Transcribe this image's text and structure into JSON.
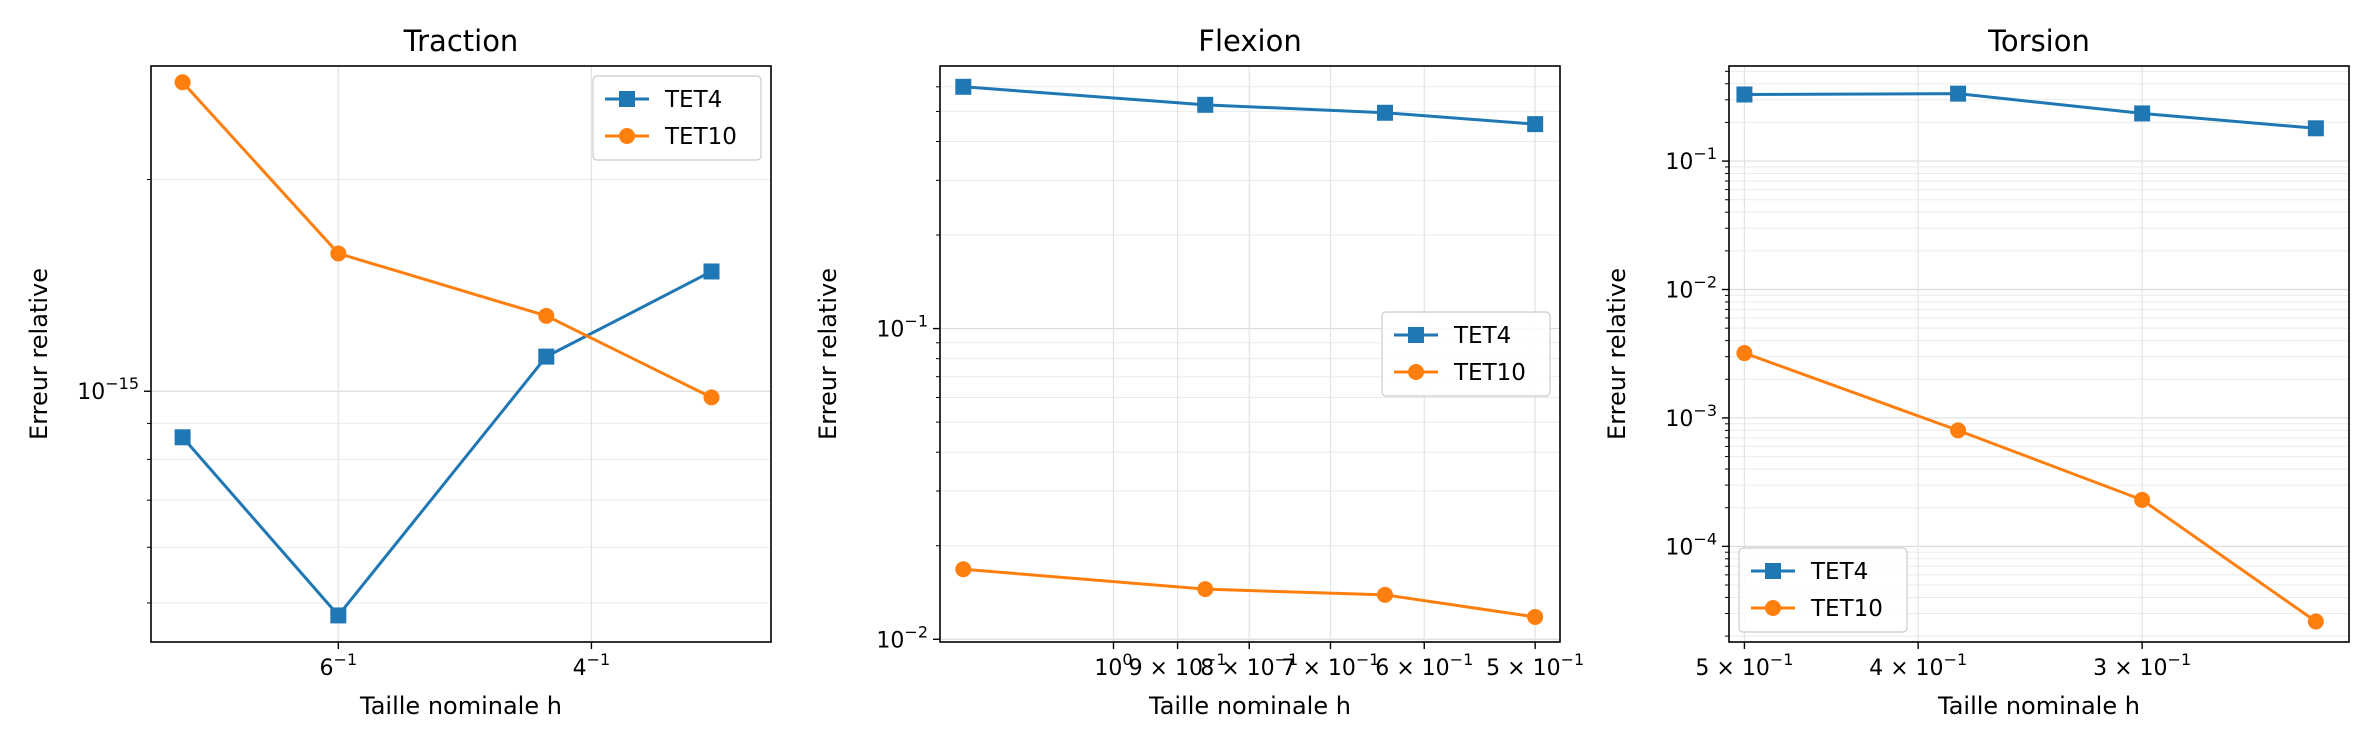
{
  "chart_data": [
    {
      "type": "line",
      "title": "Traction",
      "xlabel": "Taille nominale h",
      "ylabel": "Erreur relative",
      "xscale": "log",
      "xinverted": true,
      "xlim": [
        0.81,
        0.3
      ],
      "yscale": "log",
      "ylim": [
        4.4e-16,
        2.9e-15
      ],
      "xticks": [
        {
          "value": 0.6,
          "mantissa": "6",
          "exponent": "−1"
        },
        {
          "value": 0.4,
          "mantissa": "4",
          "exponent": "−1"
        }
      ],
      "yticks": [
        {
          "value": 1e-15,
          "base": "10",
          "exponent": "−15"
        }
      ],
      "series": [
        {
          "name": "TET4",
          "color": "#1f77b4",
          "marker": "square",
          "x": [
            0.77,
            0.6,
            0.43,
            0.33
          ],
          "y": [
            8.6e-16,
            4.8e-16,
            1.12e-15,
            1.48e-15
          ]
        },
        {
          "name": "TET10",
          "color": "#ff7f0e",
          "marker": "circle",
          "x": [
            0.77,
            0.6,
            0.43,
            0.33
          ],
          "y": [
            2.75e-15,
            1.57e-15,
            1.28e-15,
            9.8e-16
          ]
        }
      ],
      "grid": true,
      "legend": "upper right"
    },
    {
      "type": "line",
      "title": "Flexion",
      "xlabel": "Taille nominale h",
      "ylabel": "Erreur relative",
      "xscale": "log",
      "xinverted": true,
      "xlim": [
        1.33,
        0.48
      ],
      "yscale": "log",
      "ylim": [
        0.0098,
        0.7
      ],
      "xticks": [
        {
          "value": 1.0,
          "mantissa": "10",
          "exponent": "0"
        },
        {
          "value": 0.9,
          "mantissa": "9 × 10",
          "exponent": "−1"
        },
        {
          "value": 0.8,
          "mantissa": "8 × 10",
          "exponent": "−1"
        },
        {
          "value": 0.7,
          "mantissa": "7 × 10",
          "exponent": "−1"
        },
        {
          "value": 0.6,
          "mantissa": "6 × 10",
          "exponent": "−1"
        },
        {
          "value": 0.5,
          "mantissa": "5 × 10",
          "exponent": "−1"
        }
      ],
      "yticks": [
        {
          "value": 0.01,
          "base": "10",
          "exponent": "−2"
        },
        {
          "value": 0.1,
          "base": "10",
          "exponent": "−1"
        }
      ],
      "series": [
        {
          "name": "TET4",
          "color": "#1f77b4",
          "marker": "square",
          "x": [
            1.28,
            0.86,
            0.64,
            0.5
          ],
          "y": [
            0.6,
            0.525,
            0.495,
            0.455
          ]
        },
        {
          "name": "TET10",
          "color": "#ff7f0e",
          "marker": "circle",
          "x": [
            1.28,
            0.86,
            0.64,
            0.5
          ],
          "y": [
            0.0168,
            0.0145,
            0.0139,
            0.0118
          ]
        }
      ],
      "grid": true,
      "legend": "center right"
    },
    {
      "type": "line",
      "title": "Torsion",
      "xlabel": "Taille nominale h",
      "ylabel": "Erreur relative",
      "xscale": "log",
      "xinverted": true,
      "xlim": [
        0.51,
        0.23
      ],
      "yscale": "log",
      "ylim": [
        1.8e-05,
        0.55
      ],
      "xticks": [
        {
          "value": 0.5,
          "mantissa": "5 × 10",
          "exponent": "−1"
        },
        {
          "value": 0.4,
          "mantissa": "4 × 10",
          "exponent": "−1"
        },
        {
          "value": 0.3,
          "mantissa": "3 × 10",
          "exponent": "−1"
        }
      ],
      "yticks": [
        {
          "value": 0.0001,
          "base": "10",
          "exponent": "−4"
        },
        {
          "value": 0.001,
          "base": "10",
          "exponent": "−3"
        },
        {
          "value": 0.01,
          "base": "10",
          "exponent": "−2"
        },
        {
          "value": 0.1,
          "base": "10",
          "exponent": "−1"
        }
      ],
      "series": [
        {
          "name": "TET4",
          "color": "#1f77b4",
          "marker": "square",
          "x": [
            0.5,
            0.38,
            0.3,
            0.24
          ],
          "y": [
            0.33,
            0.335,
            0.235,
            0.18
          ]
        },
        {
          "name": "TET10",
          "color": "#ff7f0e",
          "marker": "circle",
          "x": [
            0.5,
            0.38,
            0.3,
            0.24
          ],
          "y": [
            0.0032,
            0.0008,
            0.00023,
            2.6e-05
          ]
        }
      ],
      "grid": true,
      "legend": "lower left"
    }
  ]
}
